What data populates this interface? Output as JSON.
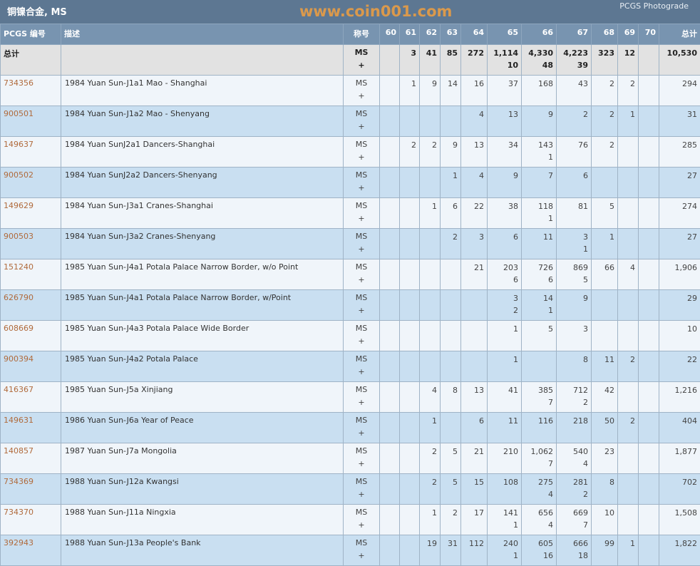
{
  "header": {
    "title": "铜镍合金, MS",
    "photograde_link": "PCGS Photograde"
  },
  "columns": {
    "id": "PCGS 编号",
    "desc": "描述",
    "designation": "称号",
    "grades": [
      "60",
      "61",
      "62",
      "63",
      "64",
      "65",
      "66",
      "67",
      "68",
      "69",
      "70"
    ],
    "total": "总计"
  },
  "total_row": {
    "label": "总计",
    "designation": [
      "MS",
      "+"
    ],
    "cells": [
      [
        "",
        ""
      ],
      [
        "3",
        ""
      ],
      [
        "41",
        ""
      ],
      [
        "85",
        ""
      ],
      [
        "272",
        ""
      ],
      [
        "1,114",
        "10"
      ],
      [
        "4,330",
        "48"
      ],
      [
        "4,223",
        "39"
      ],
      [
        "323",
        ""
      ],
      [
        "12",
        ""
      ],
      [
        "",
        ""
      ]
    ],
    "total": "10,530"
  },
  "rows": [
    {
      "id": "734356",
      "desc": "1984 Yuan Sun-J1a1 Mao - Shanghai",
      "designation": [
        "MS",
        "+"
      ],
      "cells": [
        [
          "",
          ""
        ],
        [
          "1",
          ""
        ],
        [
          "9",
          ""
        ],
        [
          "14",
          ""
        ],
        [
          "16",
          ""
        ],
        [
          "37",
          ""
        ],
        [
          "168",
          ""
        ],
        [
          "43",
          ""
        ],
        [
          "2",
          ""
        ],
        [
          "2",
          ""
        ],
        [
          "",
          ""
        ]
      ],
      "total": "294"
    },
    {
      "id": "900501",
      "desc": "1984 Yuan Sun-J1a2 Mao - Shenyang",
      "designation": [
        "MS",
        "+"
      ],
      "cells": [
        [
          "",
          ""
        ],
        [
          "",
          ""
        ],
        [
          "",
          ""
        ],
        [
          "",
          ""
        ],
        [
          "4",
          ""
        ],
        [
          "13",
          ""
        ],
        [
          "9",
          ""
        ],
        [
          "2",
          ""
        ],
        [
          "2",
          ""
        ],
        [
          "1",
          ""
        ],
        [
          "",
          ""
        ]
      ],
      "total": "31"
    },
    {
      "id": "149637",
      "desc": "1984 Yuan SunJ2a1 Dancers-Shanghai",
      "designation": [
        "MS",
        "+"
      ],
      "cells": [
        [
          "",
          ""
        ],
        [
          "2",
          ""
        ],
        [
          "2",
          ""
        ],
        [
          "9",
          ""
        ],
        [
          "13",
          ""
        ],
        [
          "34",
          ""
        ],
        [
          "143",
          "1"
        ],
        [
          "76",
          ""
        ],
        [
          "2",
          ""
        ],
        [
          "",
          ""
        ],
        [
          "",
          ""
        ]
      ],
      "total": "285"
    },
    {
      "id": "900502",
      "desc": "1984 Yuan SunJ2a2 Dancers-Shenyang",
      "designation": [
        "MS",
        "+"
      ],
      "cells": [
        [
          "",
          ""
        ],
        [
          "",
          ""
        ],
        [
          "",
          ""
        ],
        [
          "1",
          ""
        ],
        [
          "4",
          ""
        ],
        [
          "9",
          ""
        ],
        [
          "7",
          ""
        ],
        [
          "6",
          ""
        ],
        [
          "",
          ""
        ],
        [
          "",
          ""
        ],
        [
          "",
          ""
        ]
      ],
      "total": "27"
    },
    {
      "id": "149629",
      "desc": "1984 Yuan Sun-J3a1 Cranes-Shanghai",
      "designation": [
        "MS",
        "+"
      ],
      "cells": [
        [
          "",
          ""
        ],
        [
          "",
          ""
        ],
        [
          "1",
          ""
        ],
        [
          "6",
          ""
        ],
        [
          "22",
          ""
        ],
        [
          "38",
          ""
        ],
        [
          "118",
          "1"
        ],
        [
          "81",
          ""
        ],
        [
          "5",
          ""
        ],
        [
          "",
          ""
        ],
        [
          "",
          ""
        ]
      ],
      "total": "274"
    },
    {
      "id": "900503",
      "desc": "1984 Yuan Sun-J3a2 Cranes-Shenyang",
      "designation": [
        "MS",
        "+"
      ],
      "cells": [
        [
          "",
          ""
        ],
        [
          "",
          ""
        ],
        [
          "",
          ""
        ],
        [
          "2",
          ""
        ],
        [
          "3",
          ""
        ],
        [
          "6",
          ""
        ],
        [
          "11",
          ""
        ],
        [
          "3",
          "1"
        ],
        [
          "1",
          ""
        ],
        [
          "",
          ""
        ],
        [
          "",
          ""
        ]
      ],
      "total": "27"
    },
    {
      "id": "151240",
      "desc": "1985 Yuan Sun-J4a1 Potala Palace Narrow Border, w/o Point",
      "designation": [
        "MS",
        "+"
      ],
      "cells": [
        [
          "",
          ""
        ],
        [
          "",
          ""
        ],
        [
          "",
          ""
        ],
        [
          "",
          ""
        ],
        [
          "21",
          ""
        ],
        [
          "203",
          "6"
        ],
        [
          "726",
          "6"
        ],
        [
          "869",
          "5"
        ],
        [
          "66",
          ""
        ],
        [
          "4",
          ""
        ],
        [
          "",
          ""
        ]
      ],
      "total": "1,906"
    },
    {
      "id": "626790",
      "desc": "1985 Yuan Sun-J4a1 Potala Palace Narrow Border, w/Point",
      "designation": [
        "MS",
        "+"
      ],
      "cells": [
        [
          "",
          ""
        ],
        [
          "",
          ""
        ],
        [
          "",
          ""
        ],
        [
          "",
          ""
        ],
        [
          "",
          ""
        ],
        [
          "3",
          "2"
        ],
        [
          "14",
          "1"
        ],
        [
          "9",
          ""
        ],
        [
          "",
          ""
        ],
        [
          "",
          ""
        ],
        [
          "",
          ""
        ]
      ],
      "total": "29"
    },
    {
      "id": "608669",
      "desc": "1985 Yuan Sun-J4a3 Potala Palace Wide Border",
      "designation": [
        "MS",
        "+"
      ],
      "cells": [
        [
          "",
          ""
        ],
        [
          "",
          ""
        ],
        [
          "",
          ""
        ],
        [
          "",
          ""
        ],
        [
          "",
          ""
        ],
        [
          "1",
          ""
        ],
        [
          "5",
          ""
        ],
        [
          "3",
          ""
        ],
        [
          "",
          ""
        ],
        [
          "",
          ""
        ],
        [
          "",
          ""
        ]
      ],
      "total": "10"
    },
    {
      "id": "900394",
      "desc": "1985 Yuan Sun-J4a2 Potala Palace",
      "designation": [
        "MS",
        "+"
      ],
      "cells": [
        [
          "",
          ""
        ],
        [
          "",
          ""
        ],
        [
          "",
          ""
        ],
        [
          "",
          ""
        ],
        [
          "",
          ""
        ],
        [
          "1",
          ""
        ],
        [
          "",
          ""
        ],
        [
          "8",
          ""
        ],
        [
          "11",
          ""
        ],
        [
          "2",
          ""
        ],
        [
          "",
          ""
        ]
      ],
      "total": "22"
    },
    {
      "id": "416367",
      "desc": "1985 Yuan Sun-J5a Xinjiang",
      "designation": [
        "MS",
        "+"
      ],
      "cells": [
        [
          "",
          ""
        ],
        [
          "",
          ""
        ],
        [
          "4",
          ""
        ],
        [
          "8",
          ""
        ],
        [
          "13",
          ""
        ],
        [
          "41",
          ""
        ],
        [
          "385",
          "7"
        ],
        [
          "712",
          "2"
        ],
        [
          "42",
          ""
        ],
        [
          "",
          ""
        ],
        [
          "",
          ""
        ]
      ],
      "total": "1,216"
    },
    {
      "id": "149631",
      "desc": "1986 Yuan Sun-J6a Year of Peace",
      "designation": [
        "MS",
        "+"
      ],
      "cells": [
        [
          "",
          ""
        ],
        [
          "",
          ""
        ],
        [
          "1",
          ""
        ],
        [
          "",
          ""
        ],
        [
          "6",
          ""
        ],
        [
          "11",
          ""
        ],
        [
          "116",
          ""
        ],
        [
          "218",
          ""
        ],
        [
          "50",
          ""
        ],
        [
          "2",
          ""
        ],
        [
          "",
          ""
        ]
      ],
      "total": "404"
    },
    {
      "id": "140857",
      "desc": "1987 Yuan Sun-J7a Mongolia",
      "designation": [
        "MS",
        "+"
      ],
      "cells": [
        [
          "",
          ""
        ],
        [
          "",
          ""
        ],
        [
          "2",
          ""
        ],
        [
          "5",
          ""
        ],
        [
          "21",
          ""
        ],
        [
          "210",
          ""
        ],
        [
          "1,062",
          "7"
        ],
        [
          "540",
          "4"
        ],
        [
          "23",
          ""
        ],
        [
          "",
          ""
        ],
        [
          "",
          ""
        ]
      ],
      "total": "1,877"
    },
    {
      "id": "734369",
      "desc": "1988 Yuan Sun-J12a Kwangsi",
      "designation": [
        "MS",
        "+"
      ],
      "cells": [
        [
          "",
          ""
        ],
        [
          "",
          ""
        ],
        [
          "2",
          ""
        ],
        [
          "5",
          ""
        ],
        [
          "15",
          ""
        ],
        [
          "108",
          ""
        ],
        [
          "275",
          "4"
        ],
        [
          "281",
          "2"
        ],
        [
          "8",
          ""
        ],
        [
          "",
          ""
        ],
        [
          "",
          ""
        ]
      ],
      "total": "702"
    },
    {
      "id": "734370",
      "desc": "1988 Yuan Sun-J11a Ningxia",
      "designation": [
        "MS",
        "+"
      ],
      "cells": [
        [
          "",
          ""
        ],
        [
          "",
          ""
        ],
        [
          "1",
          ""
        ],
        [
          "2",
          ""
        ],
        [
          "17",
          ""
        ],
        [
          "141",
          "1"
        ],
        [
          "656",
          "4"
        ],
        [
          "669",
          "7"
        ],
        [
          "10",
          ""
        ],
        [
          "",
          ""
        ],
        [
          "",
          ""
        ]
      ],
      "total": "1,508"
    },
    {
      "id": "392943",
      "desc": "1988 Yuan Sun-J13a People's Bank",
      "designation": [
        "MS",
        "+"
      ],
      "cells": [
        [
          "",
          ""
        ],
        [
          "",
          ""
        ],
        [
          "19",
          ""
        ],
        [
          "31",
          ""
        ],
        [
          "112",
          ""
        ],
        [
          "240",
          "1"
        ],
        [
          "605",
          "16"
        ],
        [
          "666",
          "18"
        ],
        [
          "99",
          ""
        ],
        [
          "1",
          ""
        ],
        [
          "",
          ""
        ]
      ],
      "total": "1,822"
    }
  ],
  "watermark": "www.coin001.com"
}
